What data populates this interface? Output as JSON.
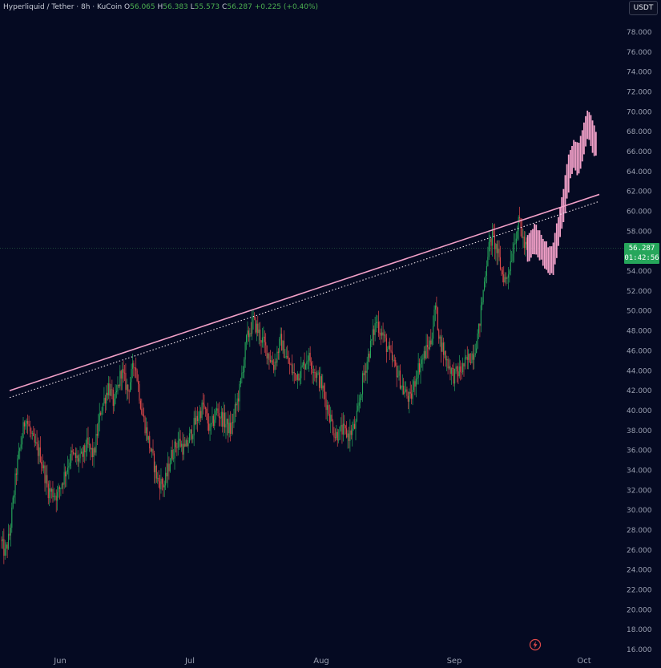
{
  "header": {
    "symbol": "Hyperliquid / Tether · 8h · KuCoin",
    "open_label": "O",
    "open": "56.065",
    "high_label": "H",
    "high": "56.383",
    "low_label": "L",
    "low": "55.573",
    "close_label": "C",
    "close": "56.287",
    "change": "+0.225 (+0.40%)"
  },
  "currency_badge": "USDT",
  "price_tag": {
    "price": "56.287",
    "countdown": "01:42:56"
  },
  "colors": {
    "background": "#050a22",
    "up": "#26a65b",
    "down": "#e04a4a",
    "projection": "#f2a0c8",
    "trendline": "#f2a0c8",
    "axis_text": "#9aa0b1"
  },
  "chart_data": {
    "type": "candlestick",
    "ylim": [
      15,
      80
    ],
    "yticks": [
      "16.000",
      "18.000",
      "20.000",
      "22.000",
      "24.000",
      "26.000",
      "28.000",
      "30.000",
      "32.000",
      "34.000",
      "36.000",
      "38.000",
      "40.000",
      "42.000",
      "44.000",
      "46.000",
      "48.000",
      "50.000",
      "52.000",
      "54.000",
      "56.000",
      "58.000",
      "60.000",
      "62.000",
      "64.000",
      "66.000",
      "68.000",
      "70.000",
      "72.000",
      "74.000",
      "76.000",
      "78.000"
    ],
    "xticks": [
      "Jun",
      "Jul",
      "Aug",
      "Sep",
      "Oct"
    ],
    "current_price": 56.287,
    "trendline_solid": {
      "from": 42.0,
      "to": 61.7
    },
    "trendline_dotted": {
      "from": 41.3,
      "to": 61.0
    },
    "anchors": [
      [
        0,
        27
      ],
      [
        4,
        25.6
      ],
      [
        8,
        27.5
      ],
      [
        14,
        34
      ],
      [
        22,
        39.5
      ],
      [
        28,
        37
      ],
      [
        35,
        35.5
      ],
      [
        42,
        32
      ],
      [
        50,
        31.5
      ],
      [
        56,
        33.5
      ],
      [
        62,
        35.5
      ],
      [
        70,
        35
      ],
      [
        76,
        36.5
      ],
      [
        82,
        35.5
      ],
      [
        88,
        40
      ],
      [
        95,
        42.5
      ],
      [
        100,
        40.5
      ],
      [
        106,
        44
      ],
      [
        112,
        42
      ],
      [
        118,
        45
      ],
      [
        124,
        40
      ],
      [
        130,
        37
      ],
      [
        138,
        33
      ],
      [
        144,
        32.5
      ],
      [
        150,
        35.5
      ],
      [
        156,
        37
      ],
      [
        162,
        36
      ],
      [
        170,
        38.5
      ],
      [
        178,
        40.5
      ],
      [
        184,
        38
      ],
      [
        190,
        40
      ],
      [
        196,
        39
      ],
      [
        202,
        38
      ],
      [
        210,
        42
      ],
      [
        216,
        47
      ],
      [
        222,
        49
      ],
      [
        228,
        47.5
      ],
      [
        234,
        46
      ],
      [
        240,
        44.5
      ],
      [
        246,
        47
      ],
      [
        252,
        45
      ],
      [
        258,
        43.5
      ],
      [
        264,
        44
      ],
      [
        270,
        45.5
      ],
      [
        276,
        44
      ],
      [
        282,
        42.5
      ],
      [
        288,
        40
      ],
      [
        294,
        37.5
      ],
      [
        300,
        38
      ],
      [
        306,
        37.5
      ],
      [
        312,
        38.5
      ],
      [
        318,
        43
      ],
      [
        324,
        46
      ],
      [
        330,
        49
      ],
      [
        336,
        47.5
      ],
      [
        342,
        45.5
      ],
      [
        348,
        44
      ],
      [
        354,
        42
      ],
      [
        360,
        41
      ],
      [
        366,
        44
      ],
      [
        372,
        45.5
      ],
      [
        378,
        47
      ],
      [
        382,
        50.5
      ],
      [
        386,
        47
      ],
      [
        392,
        45
      ],
      [
        398,
        43.5
      ],
      [
        404,
        44
      ],
      [
        410,
        45
      ],
      [
        416,
        46
      ],
      [
        420,
        48
      ],
      [
        424,
        52
      ],
      [
        428,
        56
      ],
      [
        432,
        57.5
      ],
      [
        436,
        56
      ],
      [
        440,
        54
      ],
      [
        444,
        53
      ],
      [
        448,
        55
      ],
      [
        452,
        57.5
      ],
      [
        456,
        59
      ],
      [
        460,
        56.5
      ],
      [
        462,
        56.3
      ]
    ],
    "projection_anchors": [
      [
        462,
        56.3
      ],
      [
        468,
        57.3
      ],
      [
        474,
        56.2
      ],
      [
        478,
        55.6
      ],
      [
        482,
        54.6
      ],
      [
        486,
        56.5
      ],
      [
        490,
        59
      ],
      [
        494,
        61.5
      ],
      [
        498,
        64.5
      ],
      [
        502,
        66
      ],
      [
        506,
        65
      ],
      [
        510,
        67
      ],
      [
        514,
        69
      ],
      [
        518,
        67.5
      ],
      [
        522,
        66.5
      ]
    ],
    "n_candles": 463
  }
}
